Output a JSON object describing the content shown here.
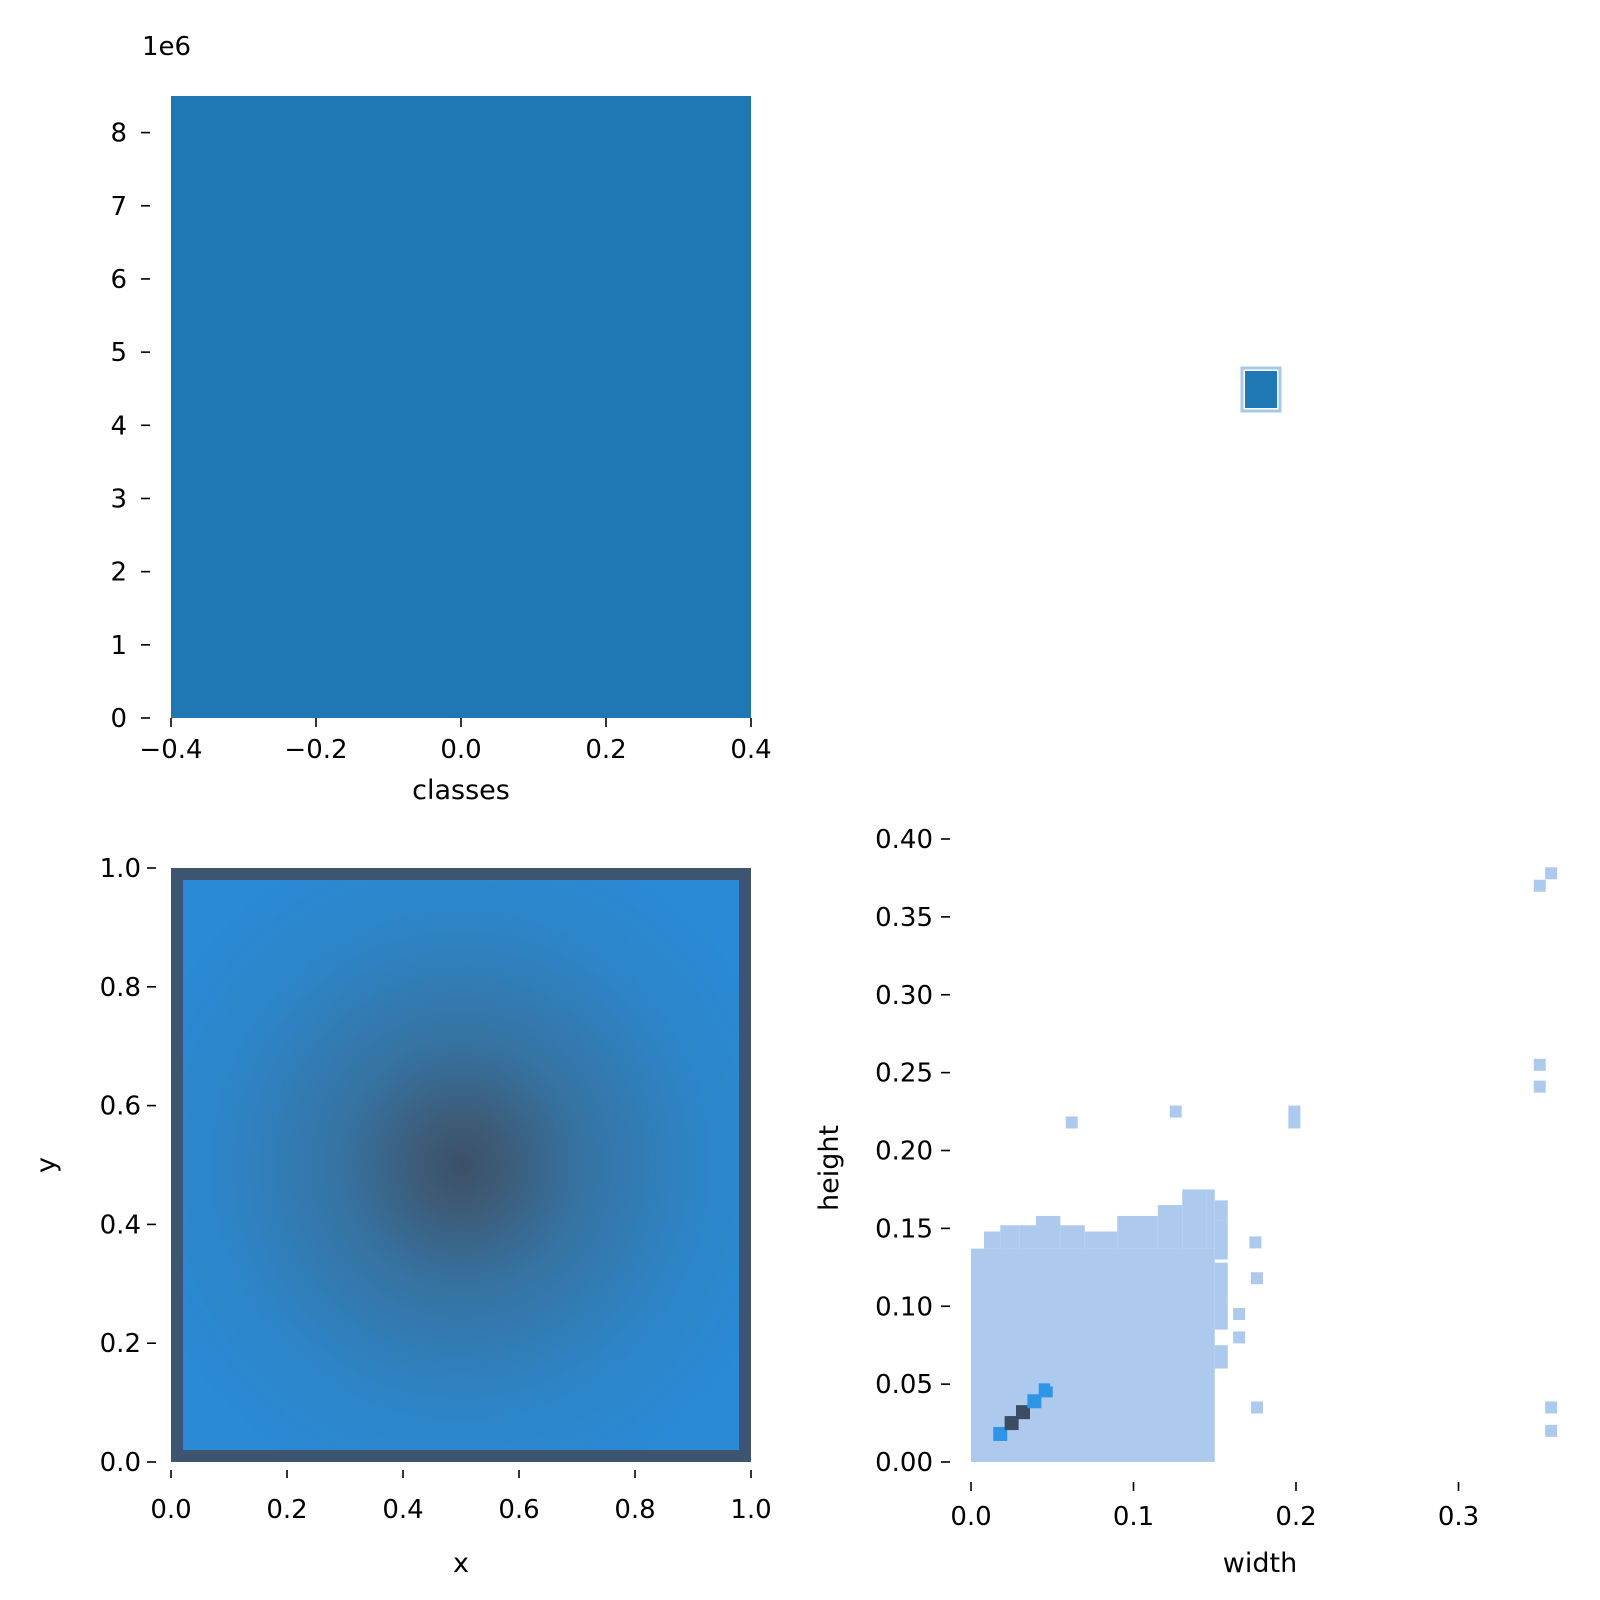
{
  "colors": {
    "bar": "#1f77b4",
    "heat_light": "#2a8ad6",
    "heat_dark": "#3c5068",
    "hist_light": "#adc9ee",
    "hist_mid": "#2f95e6",
    "hist_dark": "#3c4d63"
  },
  "chart_data": [
    {
      "type": "bar",
      "panel": "top-left",
      "offset_text": "1e6",
      "xlabel": "classes",
      "ylabel": "",
      "xlim": [
        -0.4,
        0.4
      ],
      "ylim": [
        0,
        8.5
      ],
      "x_ticks": [
        "−0.4",
        "−0.2",
        "0.0",
        "0.2",
        "0.4"
      ],
      "y_ticks": [
        "0",
        "1",
        "2",
        "3",
        "4",
        "5",
        "6",
        "7",
        "8"
      ],
      "categories": [
        "0"
      ],
      "values": [
        8.5
      ]
    },
    {
      "type": "scatter",
      "panel": "top-right",
      "note": "single marker",
      "x": [
        0
      ],
      "y": [
        0
      ]
    },
    {
      "type": "heatmap",
      "panel": "bottom-left",
      "xlabel": "x",
      "ylabel": "y",
      "xlim": [
        0,
        1
      ],
      "ylim": [
        0,
        1
      ],
      "x_ticks": [
        "0.0",
        "0.2",
        "0.4",
        "0.6",
        "0.8",
        "1.0"
      ],
      "y_ticks": [
        "0.0",
        "0.2",
        "0.4",
        "0.6",
        "0.8",
        "1.0"
      ],
      "peak": [
        0.5,
        0.5
      ]
    },
    {
      "type": "heatmap",
      "panel": "bottom-right",
      "xlabel": "width",
      "ylabel": "height",
      "xlim": [
        0,
        0.36
      ],
      "ylim": [
        0,
        0.4
      ],
      "x_ticks": [
        "0.0",
        "0.1",
        "0.2",
        "0.3"
      ],
      "y_ticks": [
        "0.00",
        "0.05",
        "0.10",
        "0.15",
        "0.20",
        "0.25",
        "0.30",
        "0.35",
        "0.40"
      ],
      "dense_region": {
        "width": [
          0,
          0.15
        ],
        "height": [
          0,
          0.15
        ]
      },
      "peak": [
        0.025,
        0.025
      ],
      "outliers": [
        [
          0.062,
          0.218
        ],
        [
          0.126,
          0.225
        ],
        [
          0.199,
          0.225
        ],
        [
          0.199,
          0.218
        ],
        [
          0.175,
          0.141
        ],
        [
          0.176,
          0.118
        ],
        [
          0.165,
          0.095
        ],
        [
          0.165,
          0.08
        ],
        [
          0.176,
          0.035
        ],
        [
          0.35,
          0.37
        ],
        [
          0.357,
          0.378
        ],
        [
          0.35,
          0.255
        ],
        [
          0.35,
          0.241
        ],
        [
          0.357,
          0.035
        ],
        [
          0.357,
          0.02
        ]
      ]
    }
  ]
}
